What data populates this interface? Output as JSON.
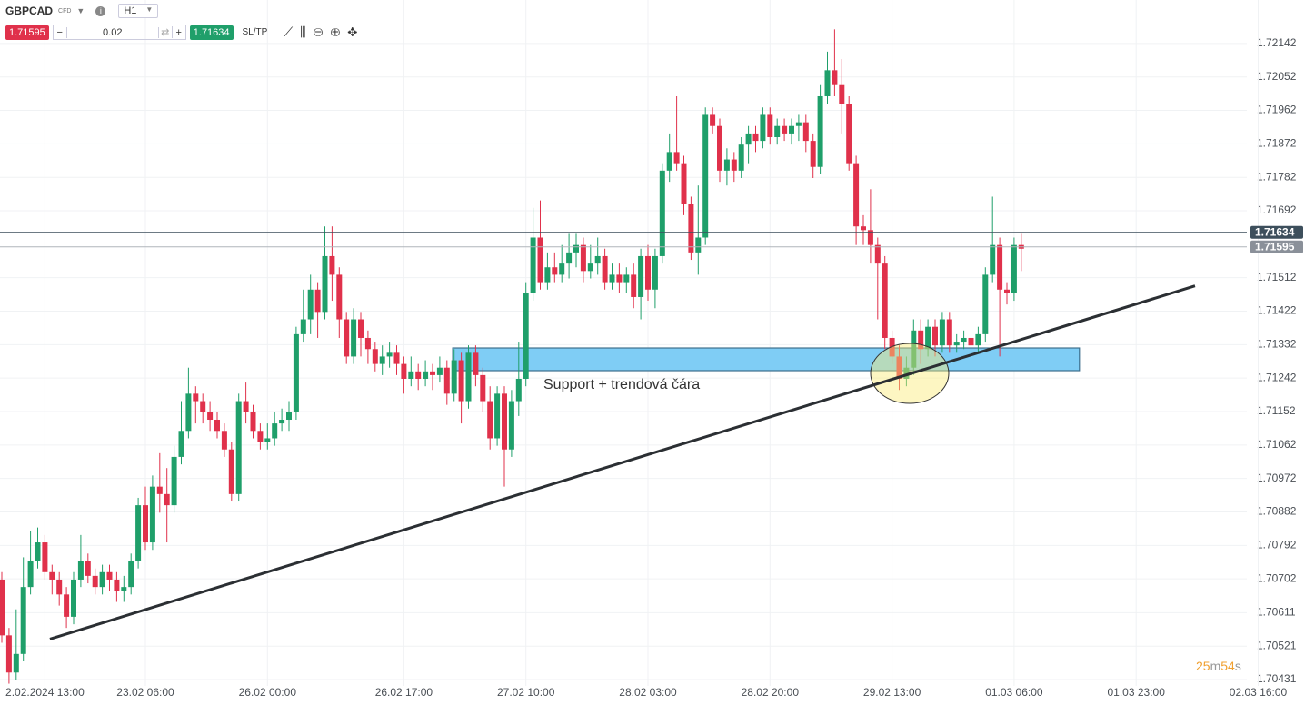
{
  "toolbar": {
    "symbol": "GBPCAD",
    "tag": "CFD",
    "timeframe": "H1",
    "minus": "−",
    "amount": "0.02",
    "plus": "+",
    "sltp": "SL/TP"
  },
  "chart_data": {
    "type": "candlestick",
    "bid": 1.71595,
    "ask": 1.71634,
    "bid_color": "#e0314b",
    "ask_color": "#1f9f6a",
    "up_color": "#1f9f6a",
    "down_color": "#e0314b",
    "ylim": [
      1.70414,
      1.72259
    ],
    "yticks": [
      1.72142,
      1.72052,
      1.71962,
      1.71872,
      1.71782,
      1.71692,
      1.71512,
      1.71422,
      1.71332,
      1.71242,
      1.71152,
      1.71062,
      1.70972,
      1.70882,
      1.70792,
      1.70702,
      1.70611,
      1.70521,
      1.70431
    ],
    "grid": true,
    "categories": [
      null,
      null,
      null,
      null,
      null,
      null,
      "2.02.2024 13:00",
      null,
      null,
      null,
      null,
      null,
      null,
      null,
      null,
      null,
      null,
      null,
      null,
      null,
      "23.02 06:00",
      null,
      null,
      null,
      null,
      null,
      null,
      null,
      null,
      null,
      null,
      null,
      null,
      null,
      null,
      null,
      null,
      "26.02 00:00",
      null,
      null,
      null,
      null,
      null,
      null,
      null,
      null,
      null,
      null,
      null,
      null,
      null,
      null,
      null,
      null,
      null,
      null,
      "26.02 17:00",
      null,
      null,
      null,
      null,
      null,
      null,
      null,
      null,
      null,
      null,
      null,
      null,
      null,
      null,
      null,
      null,
      "27.02 10:00",
      null,
      null,
      null,
      null,
      null,
      null,
      null,
      null,
      null,
      null,
      null,
      null,
      null,
      null,
      null,
      null,
      "28.02 03:00",
      null,
      null,
      null,
      null,
      null,
      null,
      null,
      null,
      null,
      null,
      null,
      null,
      null,
      null,
      null,
      null,
      "28.02 20:00",
      null,
      null,
      null,
      null,
      null,
      null,
      null,
      null,
      null,
      null,
      null,
      null,
      null,
      null,
      null,
      null,
      "29.02 13:00",
      null,
      null,
      null,
      null,
      null,
      null,
      null,
      null,
      null,
      null,
      null,
      null,
      null,
      null,
      null,
      null,
      "01.03 06:00",
      null,
      null,
      null,
      null,
      null,
      null,
      null,
      null,
      null,
      null,
      null,
      null,
      null,
      null,
      null,
      null,
      "01.03 23:00",
      null,
      null,
      null,
      null,
      null,
      null,
      null,
      null,
      null,
      null,
      null,
      null,
      null,
      null,
      null,
      null,
      "02.03 16:00"
    ],
    "candles": [
      [
        1.707,
        1.7072,
        1.7053,
        1.7055
      ],
      [
        1.7055,
        1.7057,
        1.7042,
        1.7045
      ],
      [
        1.7045,
        1.7062,
        1.7043,
        1.705
      ],
      [
        1.705,
        1.7076,
        1.7048,
        1.7068
      ],
      [
        1.7068,
        1.7083,
        1.7066,
        1.7075
      ],
      [
        1.7075,
        1.7084,
        1.7073,
        1.708
      ],
      [
        1.708,
        1.7082,
        1.707,
        1.7072
      ],
      [
        1.7072,
        1.7074,
        1.7066,
        1.707
      ],
      [
        1.707,
        1.7072,
        1.7063,
        1.7066
      ],
      [
        1.7066,
        1.7068,
        1.7057,
        1.706
      ],
      [
        1.706,
        1.7072,
        1.7058,
        1.707
      ],
      [
        1.707,
        1.7082,
        1.7068,
        1.7075
      ],
      [
        1.7075,
        1.7077,
        1.7069,
        1.7071
      ],
      [
        1.7071,
        1.7073,
        1.7066,
        1.7068
      ],
      [
        1.7068,
        1.7074,
        1.7066,
        1.7072
      ],
      [
        1.7072,
        1.7074,
        1.7067,
        1.707
      ],
      [
        1.707,
        1.7072,
        1.7064,
        1.7067
      ],
      [
        1.7067,
        1.7071,
        1.7064,
        1.7068
      ],
      [
        1.7068,
        1.7077,
        1.7066,
        1.7075
      ],
      [
        1.7075,
        1.7092,
        1.7073,
        1.709
      ],
      [
        1.709,
        1.7095,
        1.7078,
        1.708
      ],
      [
        1.708,
        1.7098,
        1.7078,
        1.7095
      ],
      [
        1.7095,
        1.7104,
        1.7088,
        1.7093
      ],
      [
        1.7093,
        1.71,
        1.708,
        1.709
      ],
      [
        1.709,
        1.7106,
        1.7088,
        1.7103
      ],
      [
        1.7103,
        1.7118,
        1.7101,
        1.711
      ],
      [
        1.711,
        1.7127,
        1.7108,
        1.712
      ],
      [
        1.712,
        1.7122,
        1.7112,
        1.7118
      ],
      [
        1.7118,
        1.712,
        1.7112,
        1.7115
      ],
      [
        1.7115,
        1.7118,
        1.711,
        1.7113
      ],
      [
        1.7113,
        1.7115,
        1.7108,
        1.711
      ],
      [
        1.711,
        1.7112,
        1.7103,
        1.7105
      ],
      [
        1.7105,
        1.7107,
        1.7091,
        1.7093
      ],
      [
        1.7093,
        1.712,
        1.7091,
        1.7118
      ],
      [
        1.7118,
        1.7123,
        1.7112,
        1.7115
      ],
      [
        1.7115,
        1.7117,
        1.7108,
        1.711
      ],
      [
        1.711,
        1.7112,
        1.7105,
        1.7107
      ],
      [
        1.7107,
        1.7112,
        1.7105,
        1.7108
      ],
      [
        1.7108,
        1.7115,
        1.7106,
        1.7112
      ],
      [
        1.7112,
        1.7116,
        1.711,
        1.7113
      ],
      [
        1.7113,
        1.7118,
        1.711,
        1.7115
      ],
      [
        1.7115,
        1.7138,
        1.7113,
        1.7136
      ],
      [
        1.7136,
        1.7148,
        1.7134,
        1.714
      ],
      [
        1.714,
        1.7152,
        1.7136,
        1.7148
      ],
      [
        1.7148,
        1.715,
        1.7135,
        1.7142
      ],
      [
        1.7142,
        1.7165,
        1.714,
        1.7157
      ],
      [
        1.7157,
        1.7165,
        1.7145,
        1.7152
      ],
      [
        1.7152,
        1.7154,
        1.7135,
        1.714
      ],
      [
        1.714,
        1.7142,
        1.7128,
        1.713
      ],
      [
        1.713,
        1.7143,
        1.7128,
        1.714
      ],
      [
        1.714,
        1.7142,
        1.713,
        1.7135
      ],
      [
        1.7135,
        1.7137,
        1.7128,
        1.7132
      ],
      [
        1.7132,
        1.7134,
        1.7126,
        1.7128
      ],
      [
        1.7128,
        1.7133,
        1.7125,
        1.713
      ],
      [
        1.713,
        1.7134,
        1.7127,
        1.7131
      ],
      [
        1.7131,
        1.7133,
        1.7125,
        1.7128
      ],
      [
        1.7128,
        1.713,
        1.712,
        1.7124
      ],
      [
        1.7124,
        1.713,
        1.7122,
        1.7126
      ],
      [
        1.7126,
        1.7128,
        1.7121,
        1.7124
      ],
      [
        1.7124,
        1.7129,
        1.7122,
        1.7126
      ],
      [
        1.7126,
        1.7128,
        1.7121,
        1.7125
      ],
      [
        1.7125,
        1.713,
        1.7123,
        1.7127
      ],
      [
        1.7127,
        1.7129,
        1.7117,
        1.712
      ],
      [
        1.712,
        1.7132,
        1.7118,
        1.7129
      ],
      [
        1.7129,
        1.7131,
        1.7112,
        1.7118
      ],
      [
        1.7118,
        1.7133,
        1.7116,
        1.7131
      ],
      [
        1.7131,
        1.7133,
        1.7122,
        1.7125
      ],
      [
        1.7125,
        1.7127,
        1.7115,
        1.7118
      ],
      [
        1.7118,
        1.7122,
        1.7105,
        1.7108
      ],
      [
        1.7108,
        1.7122,
        1.7106,
        1.712
      ],
      [
        1.712,
        1.7122,
        1.7095,
        1.7105
      ],
      [
        1.7105,
        1.7121,
        1.7103,
        1.7118
      ],
      [
        1.7118,
        1.7134,
        1.7114,
        1.7124
      ],
      [
        1.7124,
        1.715,
        1.7122,
        1.7147
      ],
      [
        1.7147,
        1.717,
        1.7145,
        1.7162
      ],
      [
        1.7162,
        1.7172,
        1.7148,
        1.715
      ],
      [
        1.715,
        1.7158,
        1.7148,
        1.7154
      ],
      [
        1.7154,
        1.7158,
        1.715,
        1.7152
      ],
      [
        1.7152,
        1.716,
        1.715,
        1.7155
      ],
      [
        1.7155,
        1.7163,
        1.7151,
        1.7158
      ],
      [
        1.7158,
        1.7163,
        1.7154,
        1.716
      ],
      [
        1.716,
        1.7162,
        1.715,
        1.7153
      ],
      [
        1.7153,
        1.716,
        1.7151,
        1.7155
      ],
      [
        1.7155,
        1.7162,
        1.7152,
        1.7157
      ],
      [
        1.7157,
        1.7159,
        1.7148,
        1.715
      ],
      [
        1.715,
        1.7155,
        1.7148,
        1.7152
      ],
      [
        1.7152,
        1.7155,
        1.7147,
        1.715
      ],
      [
        1.715,
        1.7154,
        1.7147,
        1.7152
      ],
      [
        1.7152,
        1.7155,
        1.7143,
        1.7146
      ],
      [
        1.7146,
        1.7159,
        1.714,
        1.7157
      ],
      [
        1.7157,
        1.716,
        1.7145,
        1.7148
      ],
      [
        1.7148,
        1.7159,
        1.7143,
        1.7157
      ],
      [
        1.7157,
        1.7182,
        1.7155,
        1.718
      ],
      [
        1.718,
        1.719,
        1.7177,
        1.7185
      ],
      [
        1.7185,
        1.72,
        1.718,
        1.7182
      ],
      [
        1.7182,
        1.7184,
        1.7168,
        1.7171
      ],
      [
        1.7171,
        1.7173,
        1.7156,
        1.7158
      ],
      [
        1.7158,
        1.7176,
        1.7152,
        1.7162
      ],
      [
        1.7162,
        1.7197,
        1.716,
        1.7195
      ],
      [
        1.7195,
        1.7197,
        1.719,
        1.7192
      ],
      [
        1.7192,
        1.7194,
        1.7177,
        1.718
      ],
      [
        1.718,
        1.7186,
        1.7176,
        1.7183
      ],
      [
        1.7183,
        1.7185,
        1.7177,
        1.718
      ],
      [
        1.718,
        1.7189,
        1.7178,
        1.7187
      ],
      [
        1.7187,
        1.7192,
        1.7182,
        1.719
      ],
      [
        1.719,
        1.7192,
        1.7185,
        1.7188
      ],
      [
        1.7188,
        1.7197,
        1.7186,
        1.7195
      ],
      [
        1.7195,
        1.7197,
        1.7187,
        1.7189
      ],
      [
        1.7189,
        1.7194,
        1.7187,
        1.7192
      ],
      [
        1.7192,
        1.7194,
        1.7188,
        1.719
      ],
      [
        1.719,
        1.7194,
        1.7187,
        1.7192
      ],
      [
        1.7192,
        1.7195,
        1.7188,
        1.7193
      ],
      [
        1.7193,
        1.7195,
        1.7185,
        1.7188
      ],
      [
        1.7188,
        1.719,
        1.7178,
        1.7181
      ],
      [
        1.7181,
        1.7203,
        1.7179,
        1.72
      ],
      [
        1.72,
        1.7212,
        1.7198,
        1.7207
      ],
      [
        1.7207,
        1.7218,
        1.72,
        1.7203
      ],
      [
        1.7203,
        1.721,
        1.719,
        1.7198
      ],
      [
        1.7198,
        1.72,
        1.718,
        1.7182
      ],
      [
        1.7182,
        1.7184,
        1.716,
        1.7165
      ],
      [
        1.7165,
        1.7168,
        1.716,
        1.7164
      ],
      [
        1.7164,
        1.7175,
        1.7155,
        1.716
      ],
      [
        1.716,
        1.7162,
        1.714,
        1.7155
      ],
      [
        1.7155,
        1.7157,
        1.7132,
        1.7135
      ],
      [
        1.7135,
        1.7137,
        1.7128,
        1.713
      ],
      [
        1.713,
        1.7133,
        1.7121,
        1.7124
      ],
      [
        1.7124,
        1.713,
        1.7122,
        1.7127
      ],
      [
        1.7127,
        1.714,
        1.7125,
        1.7137
      ],
      [
        1.7137,
        1.714,
        1.7128,
        1.7132
      ],
      [
        1.7132,
        1.714,
        1.713,
        1.7138
      ],
      [
        1.7138,
        1.714,
        1.713,
        1.7133
      ],
      [
        1.7133,
        1.7142,
        1.7131,
        1.714
      ],
      [
        1.714,
        1.7142,
        1.7131,
        1.7133
      ],
      [
        1.7133,
        1.7136,
        1.7131,
        1.7134
      ],
      [
        1.7134,
        1.7137,
        1.7132,
        1.7135
      ],
      [
        1.7135,
        1.7137,
        1.7131,
        1.7133
      ],
      [
        1.7133,
        1.7138,
        1.7131,
        1.7136
      ],
      [
        1.7136,
        1.7154,
        1.7134,
        1.7152
      ],
      [
        1.7152,
        1.7173,
        1.715,
        1.716
      ],
      [
        1.716,
        1.7162,
        1.713,
        1.7148
      ],
      [
        1.7148,
        1.715,
        1.7144,
        1.7147
      ],
      [
        1.7147,
        1.7162,
        1.7145,
        1.716
      ],
      [
        1.716,
        1.7163,
        1.7153,
        1.7159
      ],
      null,
      null,
      null,
      null,
      null,
      null,
      null,
      null,
      null,
      null,
      null,
      null,
      null,
      null,
      null,
      null,
      null,
      null,
      null,
      null,
      null,
      null,
      null,
      null,
      null,
      null,
      null,
      null,
      null,
      null,
      null
    ],
    "trendline": {
      "x": [
        6.7,
        166.2
      ],
      "y": [
        1.7054,
        1.7149
      ],
      "color": "#2b2f33"
    },
    "zone": {
      "x": [
        62.8,
        150.1
      ],
      "y": [
        1.71262,
        1.71323
      ],
      "color": "#7fcdf5",
      "label": "Support + trendová čára"
    },
    "timer": {
      "minutes": 25,
      "m": "m",
      "seconds": 54,
      "s": "s"
    }
  }
}
